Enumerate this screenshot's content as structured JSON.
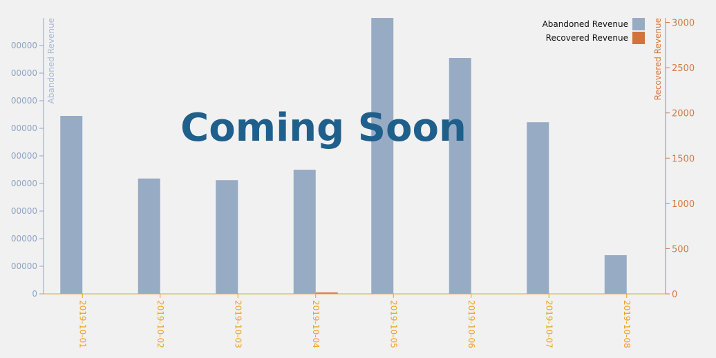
{
  "overlay_text": "Coming Soon",
  "colors": {
    "abandoned": "#98abc5",
    "recovered": "#d0743c",
    "left_axis": "#8fa4c4",
    "right_axis": "#d07a45",
    "x_axis": "#f0a020",
    "overlay": "#1f5f8b",
    "background": "#f1f1f1"
  },
  "chart_data": {
    "type": "bar",
    "title": "",
    "categories": [
      "2019-10-01",
      "2019-10-02",
      "2019-10-03",
      "2019-10-04",
      "2019-10-05",
      "2019-10-06",
      "2019-10-07",
      "2019-10-08"
    ],
    "series": [
      {
        "name": "Abandoned Revenue",
        "axis": "left",
        "values": [
          64500,
          41800,
          41200,
          45000,
          100000,
          85500,
          62200,
          14000
        ]
      },
      {
        "name": "Recovered Revenue",
        "axis": "right",
        "values": [
          0,
          0,
          0,
          12,
          0,
          0,
          0,
          0
        ]
      }
    ],
    "y_left": {
      "label": "Abandoned Revenue",
      "ylim": [
        0,
        100000
      ],
      "ticks": [
        "0",
        "00000",
        "00000",
        "00000",
        "00000",
        "00000",
        "00000",
        "00000",
        "00000",
        "00000"
      ]
    },
    "y_right": {
      "label": "Recovered Revenue",
      "ylim": [
        0,
        3050
      ],
      "ticks": [
        0,
        500,
        1000,
        1500,
        2000,
        2500,
        3000
      ]
    },
    "legend": {
      "position": "top-right"
    },
    "grid": false
  }
}
